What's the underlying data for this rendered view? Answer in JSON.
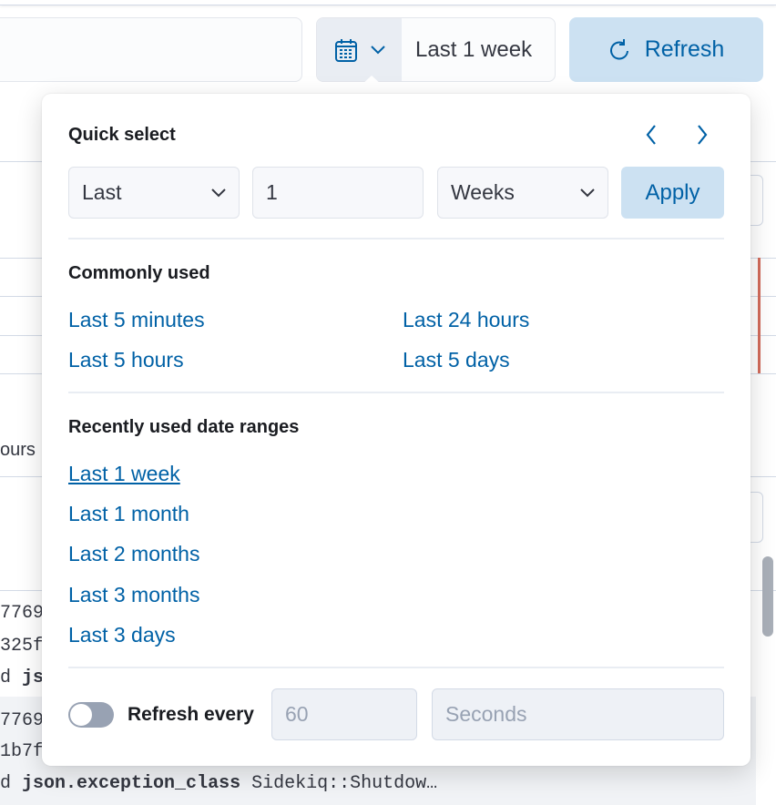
{
  "toolbar": {
    "date_label": "Last 1 week",
    "refresh_label": "Refresh"
  },
  "quick_select": {
    "title": "Quick select",
    "direction": "Last",
    "amount": "1",
    "unit": "Weeks",
    "apply_label": "Apply"
  },
  "commonly_used": {
    "title": "Commonly used",
    "items": [
      "Last 5 minutes",
      "Last 24 hours",
      "Last 5 hours",
      "Last 5 days"
    ]
  },
  "recent": {
    "title": "Recently used date ranges",
    "items": [
      "Last 1 week",
      "Last 1 month",
      "Last 2 months",
      "Last 3 months",
      "Last 3 days"
    ]
  },
  "auto_refresh": {
    "label": "Refresh every",
    "interval": "60",
    "unit": "Seconds",
    "enabled": false
  },
  "background": {
    "frag1": "ours",
    "frag2": "7769",
    "frag3": "325f",
    "frag4": "d",
    "frag4b": "js",
    "frag5": "7769",
    "frag6": "1b7f",
    "frag7": "d",
    "frag7b": "json.exception_class",
    "frag7c": "Sidekiq::Shutdow…"
  }
}
